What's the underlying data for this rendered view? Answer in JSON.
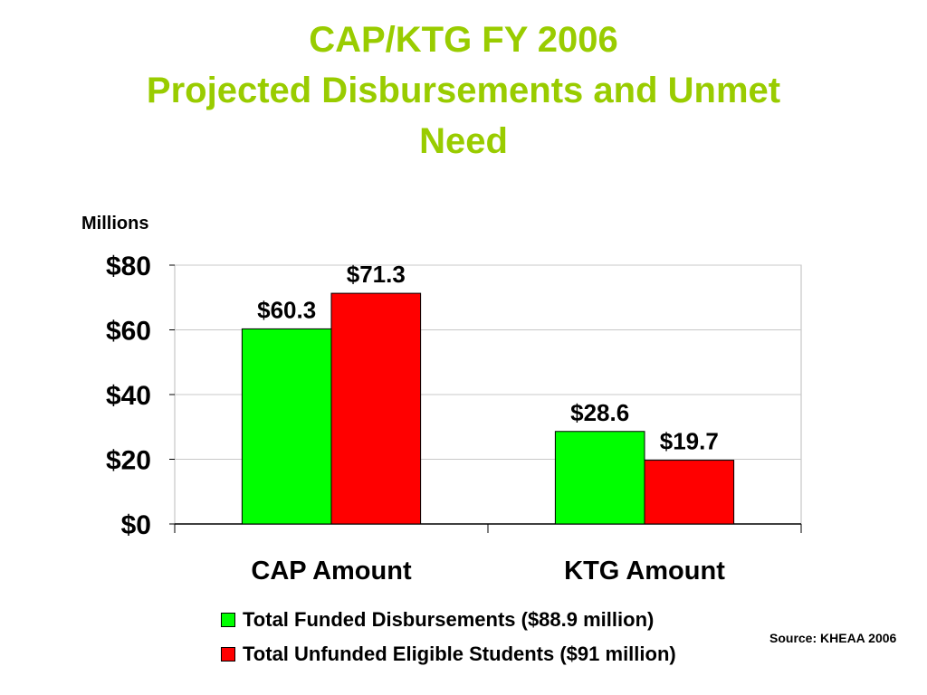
{
  "title": {
    "line1": "CAP/KTG FY 2006",
    "line2": "Projected Disbursements and Unmet",
    "line3": "Need"
  },
  "source": "Source: KHEAA 2006",
  "colors": {
    "title": "#99cc00",
    "series_funded": "#00ff00",
    "series_unfunded": "#ff0000"
  },
  "chart_data": {
    "type": "bar",
    "title": "CAP/KTG FY 2006 Projected Disbursements and Unmet Need",
    "ylabel": "Millions",
    "xlabel": "",
    "ylim": [
      0,
      80
    ],
    "yticks": [
      0,
      20,
      40,
      60,
      80
    ],
    "ytick_labels": [
      "$0",
      "$20",
      "$40",
      "$60",
      "$80"
    ],
    "grid": true,
    "legend_position": "bottom",
    "categories": [
      "CAP Amount",
      "KTG Amount"
    ],
    "series": [
      {
        "name": "Total Funded Disbursements ($88.9 million)",
        "values": [
          60.3,
          28.6
        ],
        "labels": [
          "$60.3",
          "$28.6"
        ],
        "color": "#00ff00"
      },
      {
        "name": "Total Unfunded Eligible Students ($91 million)",
        "values": [
          71.3,
          19.7
        ],
        "labels": [
          "$71.3",
          "$19.7"
        ],
        "color": "#ff0000"
      }
    ]
  }
}
